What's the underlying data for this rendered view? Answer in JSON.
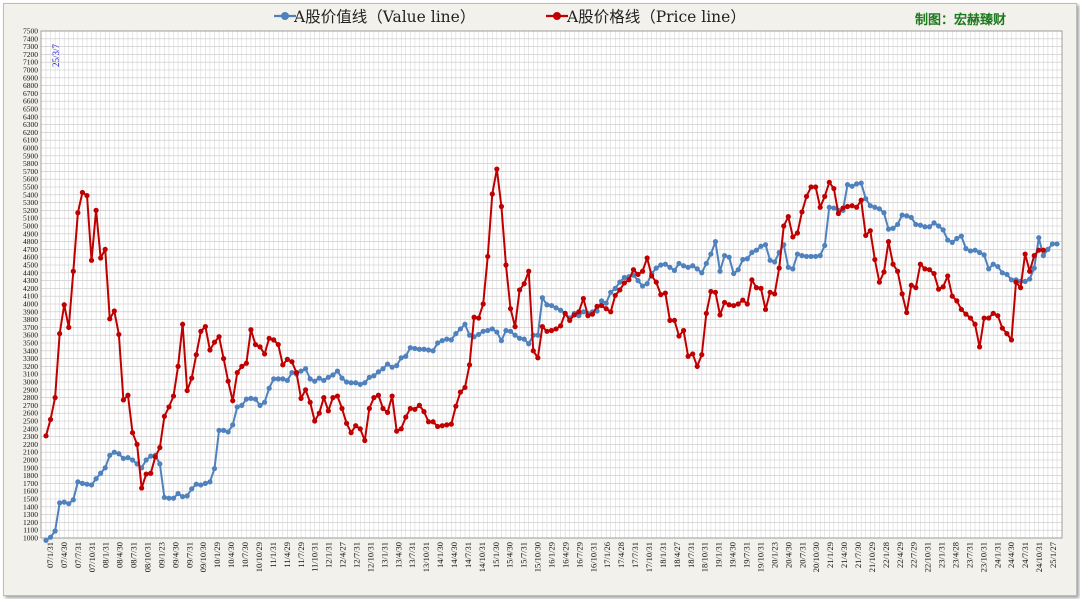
{
  "header": {
    "credit": "制图：宏赫臻财"
  },
  "chart_data": {
    "type": "line",
    "date_stamp": "25/3/7",
    "ylim": [
      1000,
      7500
    ],
    "ytick_step": 100,
    "grid": true,
    "legend_position": "top-center",
    "x_labels": [
      "07/1/31",
      "07/4/30",
      "07/7/31",
      "07/10/31",
      "08/1/31",
      "08/4/30",
      "08/7/31",
      "08/10/31",
      "09/1/23",
      "09/4/30",
      "09/7/31",
      "09/10/30",
      "10/1/29",
      "10/4/30",
      "10/7/30",
      "10/10/29",
      "11/1/31",
      "11/4/29",
      "11/7/29",
      "11/10/31",
      "12/1/31",
      "12/4/27",
      "12/7/31",
      "12/10/31",
      "13/1/31",
      "13/4/30",
      "13/7/31",
      "13/10/31",
      "14/1/30",
      "14/4/30",
      "14/7/31",
      "14/10/31",
      "15/1/30",
      "15/4/30",
      "15/7/31",
      "15/10/30",
      "16/1/29",
      "16/4/29",
      "16/7/29",
      "16/10/31",
      "17/1/26",
      "17/4/28",
      "17/7/31",
      "17/10/31",
      "18/1/31",
      "18/4/27",
      "18/7/31",
      "18/10/31",
      "19/1/31",
      "19/4/30",
      "19/7/31",
      "19/10/31",
      "20/1/23",
      "20/4/30",
      "20/7/31",
      "20/10/30",
      "21/1/29",
      "21/4/30",
      "21/7/30",
      "21/10/29",
      "22/1/28",
      "22/4/29",
      "22/7/29",
      "22/10/31",
      "23/1/31",
      "23/4/28",
      "23/7/31",
      "23/10/31",
      "24/1/31",
      "24/4/30",
      "24/7/31",
      "24/10/31",
      "25/1/27"
    ],
    "x_labels_display": [
      "07/1/31",
      "07/4/30",
      "07/7/31",
      "07/10/31",
      "08/1/31",
      "08/4/30",
      "08/7/31",
      "08/10/31",
      "09/1/23",
      "09/4/30",
      "09/7/31",
      "09/10/30",
      "10/1/29",
      "10/4/30",
      "10/7/30",
      "10/10/29",
      "11/1/31",
      "11/4/29",
      "11/7/29",
      "11/10/31",
      "12/1/31",
      "12/4/27",
      "12/7/31",
      "12/10/31",
      "13/1/31",
      "13/4/30",
      "13/7/31",
      "13/10/31",
      "14/1/30",
      "14/4/30",
      "14/7/31",
      "14/10/31",
      "15/1/30",
      "15/4/30",
      "15/7/31",
      "15/10/30",
      "16/1/29",
      "16/4/29",
      "16/7/29",
      "16/10/31",
      "17/1/26",
      "17/4/28",
      "17/7/31",
      "17/10/31",
      "18/1/31",
      "18/4/27",
      "18/7/31",
      "18/10/31",
      "19/1/31",
      "19/4/30",
      "19/7/31",
      "19/10/31",
      "20/1/23",
      "20/4/30",
      "20/7/31",
      "20/10/30",
      "21/1/29",
      "21/4/30",
      "21/7/30",
      "21/10/29",
      "22/1/28",
      "22/4/29",
      "22/7/29",
      "22/10/31",
      "23/1/31",
      "23/4/28",
      "23/7/31",
      "23/10/31",
      "24/1/31",
      "24/4/30",
      "24/7/31",
      "24/10/31",
      "25/1/27"
    ],
    "x_labels_shown": [
      "07/1/31",
      "07/4/30",
      "07/7/31",
      "07/10/31",
      "08/1/31",
      "08/4/30",
      "08/7/31",
      "08/10/31",
      "09/1/23",
      "09/4/30",
      "09/7/31",
      "09/10/30",
      "10/1/29",
      "10/4/30",
      "10/7/30",
      "10/10/29",
      "11/1/31",
      "11/4/29",
      "11/7/29",
      "11/10/31",
      "12/1/31",
      "12/4/27",
      "12/7/31",
      "12/10/31",
      "13/1/31",
      "13/4/30",
      "13/7/31",
      "13/10/31",
      "14/1/30",
      "14/4/30",
      "14/7/31",
      "14/10/31",
      "15/1/30",
      "15/4/30",
      "15/7/31",
      "15/10/30",
      "16/1/29",
      "16/4/29",
      "16/7/29",
      "16/10/31",
      "17/1/26",
      "17/4/28",
      "17/7/31",
      "17/10/31",
      "18/1/31",
      "18/4/27",
      "18/7/31",
      "18/10/31",
      "19/1/31",
      "19/4/30",
      "19/7/31",
      "19/10/31",
      "20/1/23",
      "20/4/30",
      "20/7/31",
      "20/10/30",
      "21/1/29",
      "21/4/30",
      "21/7/30",
      "21/10/29",
      "22/1/28",
      "22/4/29",
      "22/7/29",
      "22/10/31",
      "23/1/31",
      "23/4/28",
      "23/7/31",
      "23/10/31",
      "24/1/31",
      "24/4/30",
      "24/7/31",
      "24/10/31",
      "25/1/27"
    ],
    "series": [
      {
        "name": "A股价值线（Value line）",
        "color": "#4f81bd",
        "values": [
          970,
          1010,
          1090,
          1450,
          1460,
          1440,
          1490,
          1720,
          1700,
          1690,
          1680,
          1760,
          1830,
          1900,
          2060,
          2100,
          2080,
          2020,
          2030,
          2000,
          1950,
          1900,
          2000,
          2050,
          2060,
          1950,
          1520,
          1510,
          1510,
          1570,
          1530,
          1540,
          1630,
          1690,
          1680,
          1700,
          1720,
          1890,
          2380,
          2380,
          2360,
          2450,
          2680,
          2700,
          2780,
          2790,
          2780,
          2700,
          2740,
          2920,
          3040,
          3040,
          3040,
          3020,
          3120,
          3100,
          3140,
          3170,
          3040,
          3010,
          3050,
          3020,
          3060,
          3090,
          3140,
          3050,
          3000,
          2990,
          2990,
          2970,
          2990,
          3060,
          3080,
          3130,
          3170,
          3230,
          3190,
          3210,
          3310,
          3330,
          3440,
          3430,
          3420,
          3420,
          3410,
          3400,
          3500,
          3530,
          3550,
          3540,
          3620,
          3680,
          3740,
          3600,
          3580,
          3610,
          3650,
          3660,
          3680,
          3640,
          3530,
          3660,
          3650,
          3600,
          3560,
          3550,
          3490,
          3600,
          3600,
          4080,
          3990,
          3980,
          3950,
          3920,
          3880,
          3820,
          3880,
          3850,
          3900,
          3880,
          3900,
          3910,
          4040,
          4010,
          4150,
          4200,
          4280,
          4340,
          4350,
          4370,
          4300,
          4230,
          4260,
          4390,
          4460,
          4500,
          4510,
          4470,
          4430,
          4520,
          4490,
          4470,
          4490,
          4450,
          4400,
          4520,
          4640,
          4800,
          4420,
          4620,
          4600,
          4390,
          4440,
          4570,
          4580,
          4660,
          4690,
          4740,
          4760,
          4560,
          4540,
          4660,
          4760,
          4470,
          4450,
          4640,
          4620,
          4610,
          4610,
          4610,
          4620,
          4750,
          5240,
          5230,
          5200,
          5200,
          5530,
          5510,
          5540,
          5550,
          5350,
          5260,
          5240,
          5220,
          5170,
          4960,
          4970,
          5020,
          5140,
          5130,
          5110,
          5020,
          5010,
          4990,
          4990,
          5040,
          5000,
          4950,
          4820,
          4790,
          4840,
          4870,
          4710,
          4680,
          4690,
          4660,
          4630,
          4450,
          4510,
          4480,
          4400,
          4380,
          4310,
          4310,
          4290,
          4290,
          4320,
          4460,
          4850,
          4620,
          4700,
          4770,
          4770
        ]
      },
      {
        "name": "A股价格线（Price line）",
        "color": "#c00000",
        "values": [
          2310,
          2520,
          2800,
          3620,
          3990,
          3700,
          4420,
          5170,
          5430,
          5390,
          4560,
          5200,
          4590,
          4700,
          3810,
          3910,
          3610,
          2770,
          2830,
          2350,
          2200,
          1640,
          1820,
          1830,
          2040,
          2160,
          2560,
          2680,
          2820,
          3200,
          3740,
          2890,
          3050,
          3350,
          3650,
          3710,
          3410,
          3510,
          3580,
          3300,
          3010,
          2760,
          3120,
          3200,
          3240,
          3670,
          3480,
          3450,
          3360,
          3560,
          3540,
          3480,
          3220,
          3290,
          3260,
          3120,
          2790,
          2900,
          2740,
          2500,
          2600,
          2800,
          2630,
          2800,
          2820,
          2660,
          2470,
          2350,
          2440,
          2400,
          2250,
          2660,
          2800,
          2830,
          2660,
          2610,
          2820,
          2370,
          2400,
          2550,
          2660,
          2650,
          2700,
          2620,
          2490,
          2490,
          2430,
          2440,
          2450,
          2460,
          2690,
          2870,
          2930,
          3220,
          3830,
          3820,
          4000,
          4610,
          5410,
          5730,
          5250,
          4500,
          3940,
          3710,
          4180,
          4260,
          4420,
          3400,
          3310,
          3710,
          3650,
          3660,
          3680,
          3720,
          3880,
          3790,
          3860,
          3900,
          4070,
          3850,
          3870,
          3970,
          3980,
          3940,
          3900,
          4110,
          4180,
          4270,
          4310,
          4440,
          4380,
          4420,
          4590,
          4360,
          4280,
          4120,
          4140,
          3790,
          3790,
          3590,
          3660,
          3330,
          3360,
          3200,
          3350,
          3880,
          4160,
          4150,
          3860,
          4020,
          3990,
          3980,
          4000,
          4050,
          4000,
          4310,
          4210,
          4200,
          3930,
          4150,
          4130,
          4460,
          5000,
          5120,
          4860,
          4910,
          5180,
          5380,
          5500,
          5500,
          5240,
          5380,
          5560,
          5480,
          5160,
          5230,
          5250,
          5260,
          5240,
          5330,
          4880,
          4940,
          4570,
          4280,
          4410,
          4800,
          4510,
          4420,
          4130,
          3890,
          4240,
          4210,
          4510,
          4450,
          4440,
          4390,
          4190,
          4220,
          4360,
          4100,
          4040,
          3930,
          3870,
          3820,
          3740,
          3450,
          3820,
          3820,
          3880,
          3850,
          3690,
          3620,
          3540,
          4280,
          4210,
          4640,
          4420,
          4620,
          4690,
          4690
        ]
      }
    ]
  }
}
